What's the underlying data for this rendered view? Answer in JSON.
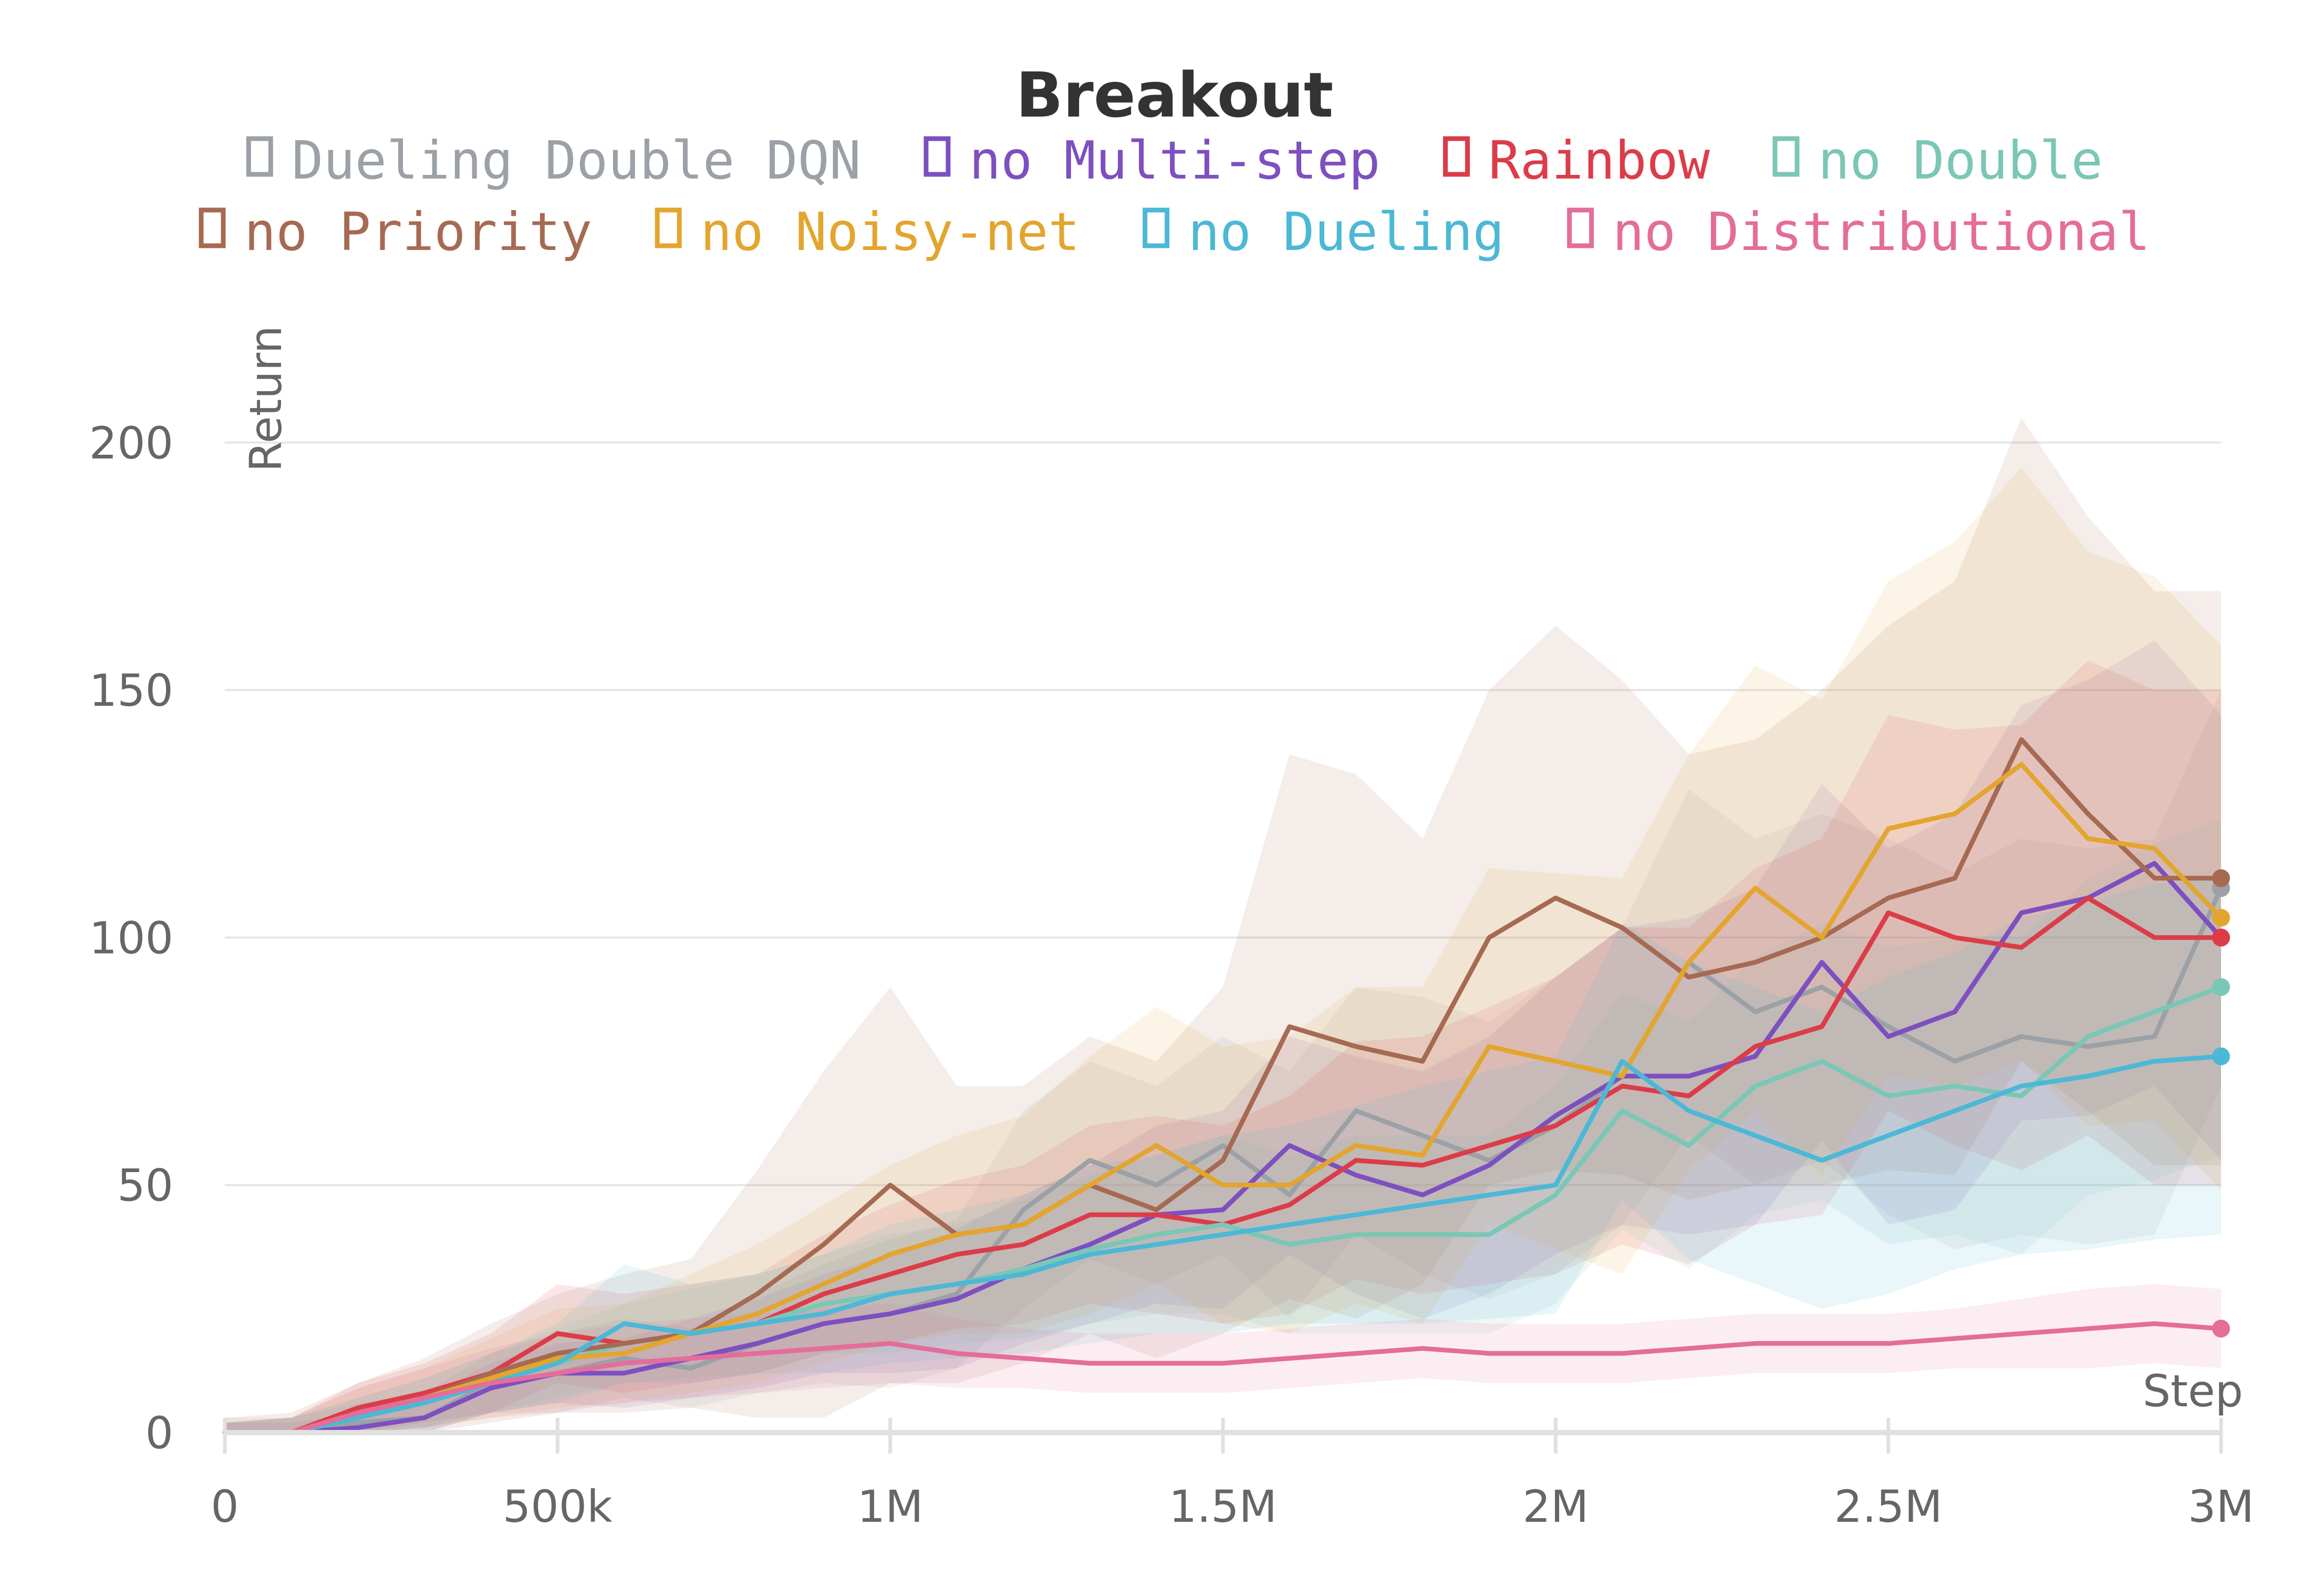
{
  "chart_data": {
    "type": "line",
    "title": "Breakout",
    "xlabel": "Step",
    "ylabel": "Return",
    "xlim": [
      0,
      3000000
    ],
    "ylim": [
      0,
      230
    ],
    "grid": "horizontal",
    "legend_placement": "top",
    "x_ticks": [
      {
        "value": 0,
        "label": "0"
      },
      {
        "value": 500000,
        "label": "500k"
      },
      {
        "value": 1000000,
        "label": "1M"
      },
      {
        "value": 1500000,
        "label": "1.5M"
      },
      {
        "value": 2000000,
        "label": "2M"
      },
      {
        "value": 2500000,
        "label": "2.5M"
      },
      {
        "value": 3000000,
        "label": "3M"
      }
    ],
    "y_ticks": [
      {
        "value": 0,
        "label": "0"
      },
      {
        "value": 50,
        "label": "50"
      },
      {
        "value": 100,
        "label": "100"
      },
      {
        "value": 150,
        "label": "150"
      },
      {
        "value": 200,
        "label": "200"
      }
    ],
    "x": [
      0,
      100000,
      200000,
      300000,
      400000,
      500000,
      600000,
      700000,
      800000,
      900000,
      1000000,
      1100000,
      1200000,
      1300000,
      1400000,
      1500000,
      1600000,
      1700000,
      1800000,
      1900000,
      2000000,
      2100000,
      2200000,
      2300000,
      2400000,
      2500000,
      2600000,
      2700000,
      2800000,
      2900000,
      3000000
    ],
    "series": [
      {
        "name": "Dueling Double DQN",
        "color": "#9ba1a6",
        "values": [
          0,
          0,
          2,
          3,
          10,
          12,
          15,
          13,
          18,
          22,
          24,
          28,
          45,
          55,
          50,
          58,
          48,
          65,
          60,
          55,
          62,
          72,
          95,
          85,
          90,
          82,
          75,
          80,
          78,
          80,
          110
        ],
        "band": [
          3,
          3,
          4,
          5,
          6,
          8,
          8,
          8,
          10,
          12,
          15,
          15,
          20,
          20,
          20,
          22,
          25,
          25,
          28,
          28,
          30,
          30,
          35,
          35,
          35,
          38,
          38,
          40,
          40,
          40,
          40
        ]
      },
      {
        "name": "no Multi-step",
        "color": "#7e4fc0",
        "values": [
          0,
          0,
          1,
          3,
          9,
          12,
          12,
          15,
          18,
          22,
          24,
          27,
          33,
          38,
          44,
          45,
          58,
          52,
          48,
          54,
          64,
          72,
          72,
          76,
          95,
          80,
          85,
          105,
          108,
          115,
          100
        ],
        "band": [
          2,
          2,
          3,
          4,
          5,
          6,
          7,
          8,
          9,
          10,
          12,
          14,
          15,
          16,
          18,
          20,
          22,
          24,
          25,
          26,
          28,
          30,
          32,
          34,
          36,
          38,
          40,
          42,
          44,
          45,
          45
        ]
      },
      {
        "name": "Rainbow",
        "color": "#dc3c48",
        "values": [
          0,
          0,
          5,
          8,
          12,
          20,
          18,
          20,
          22,
          28,
          32,
          36,
          38,
          44,
          44,
          42,
          46,
          55,
          54,
          58,
          62,
          70,
          68,
          78,
          82,
          105,
          100,
          98,
          108,
          100,
          100
        ],
        "band": [
          2,
          3,
          5,
          6,
          8,
          10,
          10,
          10,
          10,
          12,
          14,
          15,
          16,
          18,
          20,
          20,
          22,
          24,
          26,
          28,
          30,
          32,
          34,
          36,
          38,
          40,
          42,
          45,
          48,
          50,
          50
        ]
      },
      {
        "name": "no Double",
        "color": "#7ac7b5",
        "values": [
          0,
          0,
          3,
          6,
          10,
          14,
          18,
          20,
          22,
          26,
          28,
          30,
          33,
          37,
          40,
          42,
          38,
          40,
          40,
          40,
          48,
          65,
          58,
          70,
          75,
          68,
          70,
          68,
          80,
          85,
          90
        ],
        "band": [
          2,
          3,
          4,
          5,
          6,
          7,
          8,
          9,
          10,
          10,
          12,
          12,
          14,
          15,
          16,
          18,
          18,
          20,
          20,
          20,
          22,
          24,
          25,
          26,
          28,
          30,
          30,
          32,
          32,
          34,
          34
        ]
      },
      {
        "name": "no Priority",
        "color": "#a66a52",
        "values": [
          0,
          0,
          4,
          7,
          12,
          16,
          18,
          20,
          28,
          38,
          50,
          40,
          42,
          50,
          45,
          55,
          82,
          78,
          75,
          100,
          108,
          102,
          92,
          95,
          100,
          108,
          112,
          140,
          125,
          112,
          112
        ],
        "band": [
          3,
          4,
          6,
          8,
          10,
          12,
          14,
          15,
          25,
          35,
          40,
          30,
          28,
          30,
          30,
          35,
          55,
          55,
          45,
          50,
          55,
          50,
          45,
          45,
          50,
          55,
          60,
          65,
          60,
          58,
          58
        ]
      },
      {
        "name": "no Noisy-net",
        "color": "#e3a52e",
        "values": [
          0,
          0,
          4,
          7,
          11,
          15,
          16,
          20,
          24,
          30,
          36,
          40,
          42,
          50,
          58,
          50,
          50,
          58,
          56,
          78,
          75,
          72,
          95,
          110,
          100,
          122,
          125,
          135,
          120,
          118,
          104
        ],
        "band": [
          2,
          3,
          5,
          6,
          8,
          10,
          10,
          12,
          14,
          16,
          18,
          20,
          22,
          26,
          28,
          28,
          30,
          32,
          34,
          36,
          38,
          40,
          42,
          45,
          48,
          50,
          55,
          60,
          58,
          55,
          55
        ]
      },
      {
        "name": "no Dueling",
        "color": "#4cb8d6",
        "values": [
          0,
          0,
          3,
          6,
          10,
          14,
          22,
          20,
          22,
          24,
          28,
          30,
          32,
          36,
          38,
          40,
          42,
          44,
          46,
          48,
          50,
          75,
          65,
          60,
          55,
          60,
          65,
          70,
          72,
          75,
          76
        ],
        "band": [
          2,
          3,
          4,
          5,
          6,
          8,
          12,
          10,
          10,
          12,
          14,
          15,
          16,
          18,
          18,
          20,
          20,
          22,
          24,
          25,
          26,
          28,
          30,
          30,
          30,
          32,
          32,
          34,
          35,
          36,
          36
        ]
      },
      {
        "name": "no Distributional",
        "color": "#e46d9a",
        "values": [
          0,
          0,
          4,
          7,
          10,
          12,
          14,
          15,
          16,
          17,
          18,
          16,
          15,
          14,
          14,
          14,
          15,
          16,
          17,
          16,
          16,
          16,
          17,
          18,
          18,
          18,
          19,
          20,
          21,
          22,
          21
        ],
        "band": [
          2,
          3,
          5,
          6,
          7,
          8,
          8,
          8,
          8,
          8,
          8,
          7,
          6,
          6,
          6,
          6,
          6,
          6,
          6,
          6,
          6,
          6,
          6,
          6,
          6,
          6,
          6,
          7,
          8,
          8,
          8
        ]
      }
    ]
  }
}
